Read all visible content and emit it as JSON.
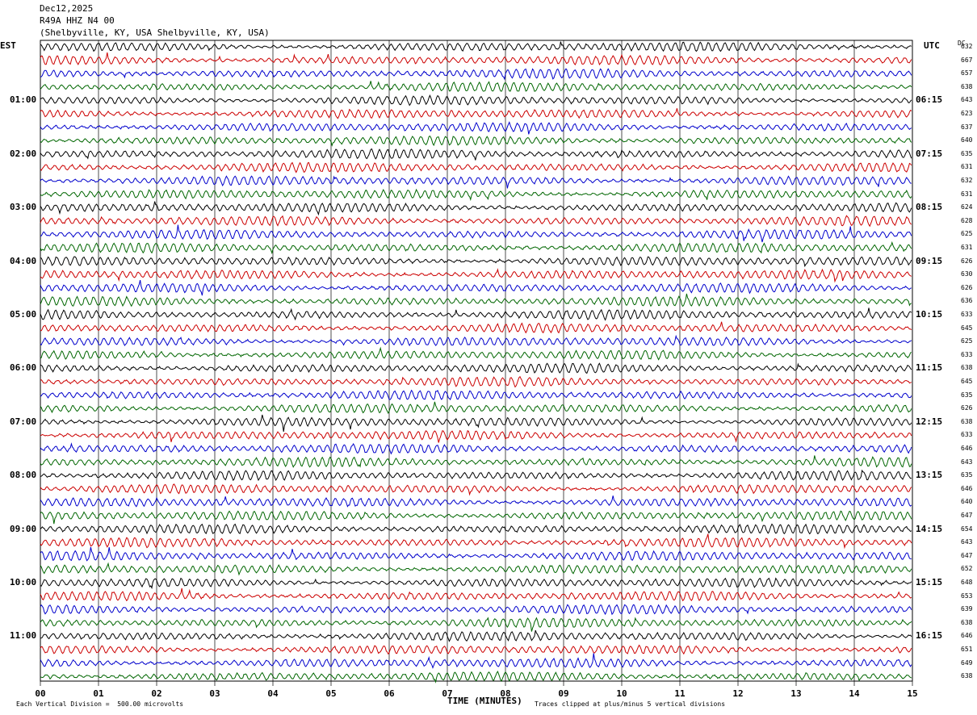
{
  "header": {
    "date": "Dec12,2025",
    "station": "R49A HHZ N4 00",
    "location": "(Shelbyville, KY, USA Shelbyville, KY, USA)"
  },
  "axes": {
    "left_zone": "EST",
    "right_zone": "UTC",
    "dc_label": "DC",
    "xlabel": "TIME (MINUTES)"
  },
  "footer": {
    "scale_note": "Each Vertical Division =  500.00 microvolts",
    "clip_note": "Traces clipped at plus/minus 5 vertical divisions"
  },
  "colors": {
    "trace_cycle": [
      "#000000",
      "#cc0000",
      "#0000cc",
      "#006600"
    ],
    "grid": "#000000"
  },
  "chart_data": {
    "type": "line",
    "title": "R49A HHZ N4 00",
    "x_ticks": [
      "00",
      "01",
      "02",
      "03",
      "04",
      "05",
      "06",
      "07",
      "08",
      "09",
      "10",
      "11",
      "12",
      "13",
      "14",
      "15"
    ],
    "xlim": [
      0,
      15
    ],
    "est_hour_labels": [
      "01:00",
      "02:00",
      "03:00",
      "04:00",
      "05:00",
      "06:00",
      "07:00",
      "08:00",
      "09:00",
      "10:00",
      "11:00"
    ],
    "utc_hour_labels": [
      "06:15",
      "07:15",
      "08:15",
      "09:15",
      "10:15",
      "11:15",
      "12:15",
      "13:15",
      "14:15",
      "15:15",
      "16:15"
    ],
    "trace_dc_offsets": [
      632,
      667,
      657,
      638,
      643,
      623,
      637,
      640,
      635,
      631,
      632,
      631,
      624,
      628,
      625,
      631,
      626,
      630,
      626,
      636,
      633,
      645,
      625,
      633,
      638,
      645,
      635,
      626,
      638,
      633,
      646,
      643,
      635,
      646,
      640,
      647,
      654,
      643,
      647,
      652,
      648,
      653,
      639,
      638,
      646,
      651,
      649,
      638
    ],
    "trace_count": 48,
    "traces_per_hour": 4,
    "minutes_per_trace": 15
  }
}
